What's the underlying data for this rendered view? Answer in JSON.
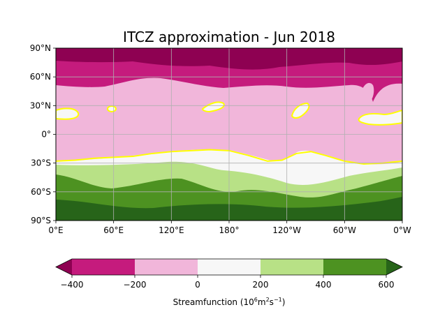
{
  "chart_data": {
    "type": "heatmap",
    "title": "ITCZ approximation - Jun 2018",
    "x_ticks": [
      "0°E",
      "60°E",
      "120°E",
      "180°",
      "120°W",
      "60°W",
      "0°W"
    ],
    "y_ticks": [
      "90°S",
      "60°S",
      "30°S",
      "0°",
      "30°N",
      "60°N",
      "90°N"
    ],
    "lon_range": [
      0,
      360
    ],
    "lat_range": [
      -90,
      90
    ],
    "grid": true,
    "colorbar": {
      "label_main": "Streamfunction (10",
      "label_sup1": "6",
      "label_mid": "m",
      "label_sup2": "2",
      "label_end": "s",
      "label_sup3": "−1",
      "label_close": ")",
      "levels": [
        -400,
        -200,
        0,
        200,
        400,
        600
      ],
      "tick_labels": [
        "−400",
        "−200",
        "0",
        "200",
        "400",
        "600"
      ],
      "colors": [
        "#8e0152",
        "#c51b7d",
        "#f1b6da",
        "#f7f7f7",
        "#b8e186",
        "#4d9221",
        "#276419"
      ],
      "extend": "both"
    },
    "zero_contour_color": "#ffff00",
    "zero_contour_line": [
      [
        0,
        -28
      ],
      [
        20,
        -27
      ],
      [
        40,
        -25
      ],
      [
        60,
        -24
      ],
      [
        80,
        -23
      ],
      [
        100,
        -20
      ],
      [
        120,
        -18
      ],
      [
        140,
        -17
      ],
      [
        160,
        -16
      ],
      [
        180,
        -17
      ],
      [
        200,
        -22
      ],
      [
        220,
        -28
      ],
      [
        235,
        -27
      ],
      [
        250,
        -20
      ],
      [
        265,
        -18
      ],
      [
        280,
        -22
      ],
      [
        300,
        -28
      ],
      [
        320,
        -31
      ],
      [
        340,
        -30
      ],
      [
        360,
        -28
      ]
    ],
    "bands": [
      {
        "level": "below -400",
        "north_edge_approx_lat": 62
      },
      {
        "level": "-400 to -200",
        "north_edge_approx_lat": 36
      },
      {
        "level": "-200 to 0",
        "north_edge_approx_lat": -28
      },
      {
        "level": "0 to 200",
        "north_edge_approx_lat": -40
      },
      {
        "level": "200 to 400",
        "north_edge_approx_lat": -55
      },
      {
        "level": "400 to 600",
        "north_edge_approx_lat": -70
      },
      {
        "level": "above 600",
        "north_edge_approx_lat": -90
      }
    ],
    "closed_zero_contours_lonlat": [
      {
        "center": [
          10,
          22
        ]
      },
      {
        "center": [
          58,
          27
        ]
      },
      {
        "center": [
          162,
          30
        ]
      },
      {
        "center": [
          255,
          26
        ]
      },
      {
        "center": [
          328,
          17
        ]
      }
    ]
  }
}
